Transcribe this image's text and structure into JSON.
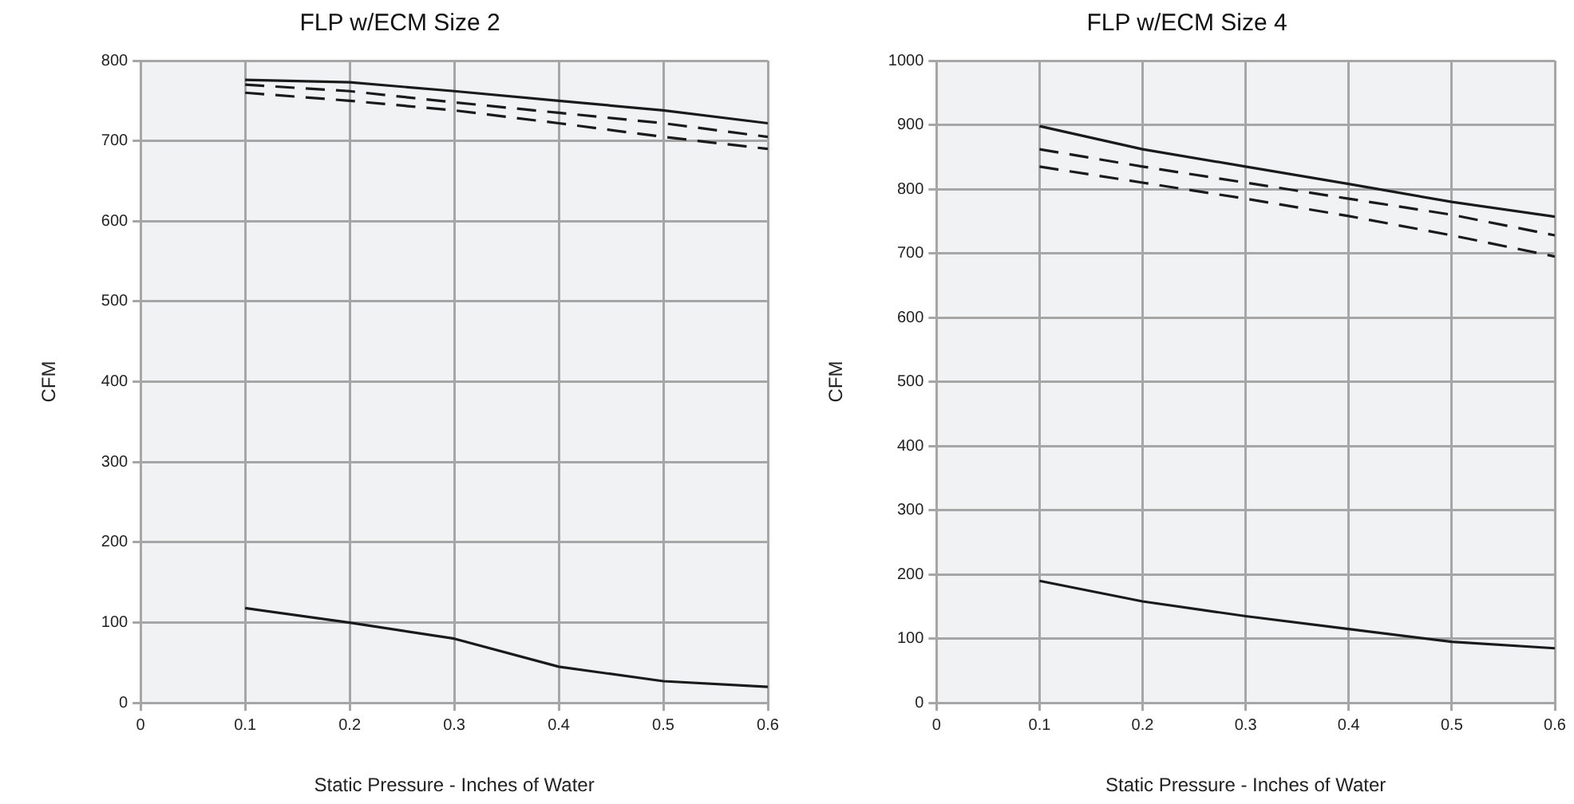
{
  "chart_data": [
    {
      "type": "line",
      "title": "FLP w/ECM Size 2",
      "xlabel": "Static Pressure - Inches of Water",
      "ylabel": "CFM",
      "x": [
        0.1,
        0.2,
        0.3,
        0.4,
        0.5,
        0.6
      ],
      "xlim": [
        0,
        0.6
      ],
      "xticks": [
        0,
        0.1,
        0.2,
        0.3,
        0.4,
        0.5,
        0.6
      ],
      "ylim": [
        0,
        800
      ],
      "yticks": [
        0,
        100,
        200,
        300,
        400,
        500,
        600,
        700,
        800
      ],
      "grid": true,
      "legend": false,
      "marker": "none",
      "series": [
        {
          "color": "#1a1a1a",
          "line_style": "solid",
          "values": [
            776,
            773,
            762,
            750,
            738,
            722
          ]
        },
        {
          "color": "#1a1a1a",
          "line_style": "dashed",
          "values": [
            770,
            762,
            748,
            735,
            722,
            705
          ]
        },
        {
          "color": "#1a1a1a",
          "line_style": "dashed",
          "values": [
            760,
            750,
            738,
            722,
            705,
            690
          ]
        },
        {
          "color": "#1a1a1a",
          "line_style": "solid",
          "values": [
            118,
            100,
            80,
            45,
            27,
            20
          ]
        }
      ]
    },
    {
      "type": "line",
      "title": "FLP w/ECM Size 4",
      "xlabel": "Static Pressure - Inches of Water",
      "ylabel": "CFM",
      "x": [
        0.1,
        0.2,
        0.3,
        0.4,
        0.5,
        0.6
      ],
      "xlim": [
        0,
        0.6
      ],
      "xticks": [
        0,
        0.1,
        0.2,
        0.3,
        0.4,
        0.5,
        0.6
      ],
      "ylim": [
        0,
        1000
      ],
      "yticks": [
        0,
        100,
        200,
        300,
        400,
        500,
        600,
        700,
        800,
        900,
        1000
      ],
      "grid": true,
      "legend": false,
      "marker": "none",
      "series": [
        {
          "color": "#1a1a1a",
          "line_style": "solid",
          "values": [
            898,
            862,
            835,
            808,
            780,
            757
          ]
        },
        {
          "color": "#1a1a1a",
          "line_style": "dashed",
          "values": [
            862,
            835,
            810,
            785,
            760,
            728
          ]
        },
        {
          "color": "#1a1a1a",
          "line_style": "dashed",
          "values": [
            835,
            810,
            785,
            758,
            728,
            695
          ]
        },
        {
          "color": "#1a1a1a",
          "line_style": "solid",
          "values": [
            190,
            158,
            135,
            115,
            95,
            85
          ]
        }
      ]
    }
  ]
}
